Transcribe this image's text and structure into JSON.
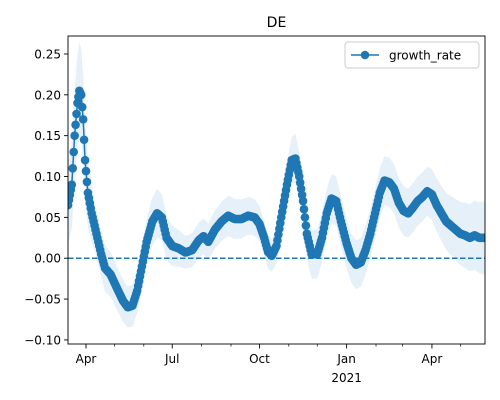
{
  "chart_data": {
    "type": "line",
    "title": "DE",
    "xlabel": "",
    "ylabel": "",
    "x_start": "2020-03-13",
    "x_end": "2021-05-27",
    "xlim": [
      "2020-03-13",
      "2021-05-27"
    ],
    "ylim": [
      -0.105,
      0.272
    ],
    "y_ticks": [
      -0.1,
      -0.05,
      0.0,
      0.05,
      0.1,
      0.15,
      0.2,
      0.25
    ],
    "y_tick_labels": [
      "−0.10",
      "−0.05",
      "0.00",
      "0.05",
      "0.10",
      "0.15",
      "0.20",
      "0.25"
    ],
    "x_ticks": [
      {
        "date": "2020-04-01",
        "label": "Apr",
        "sub": ""
      },
      {
        "date": "2020-07-01",
        "label": "Jul",
        "sub": ""
      },
      {
        "date": "2020-10-01",
        "label": "Oct",
        "sub": ""
      },
      {
        "date": "2021-01-01",
        "label": "Jan",
        "sub": "2021"
      },
      {
        "date": "2021-04-01",
        "label": "Apr",
        "sub": ""
      }
    ],
    "minor_x_ticks": [
      "2020-05-01",
      "2020-06-01",
      "2020-08-01",
      "2020-09-01",
      "2020-11-01",
      "2020-12-01",
      "2021-02-01",
      "2021-03-01",
      "2021-05-01"
    ],
    "reference_line": {
      "y": 0,
      "style": "dashed"
    },
    "legend": {
      "position": "top-right",
      "entries": [
        "growth_rate"
      ]
    },
    "grid": false,
    "color": "#1f77b4",
    "band_color": "#e6f0f9",
    "series": [
      {
        "name": "growth_rate",
        "key_points": [
          [
            "2020-03-13",
            0.065
          ],
          [
            "2020-03-17",
            0.09
          ],
          [
            "2020-03-20",
            0.15
          ],
          [
            "2020-03-23",
            0.19
          ],
          [
            "2020-03-25",
            0.205
          ],
          [
            "2020-03-27",
            0.2
          ],
          [
            "2020-03-29",
            0.17
          ],
          [
            "2020-03-31",
            0.12
          ],
          [
            "2020-04-03",
            0.08
          ],
          [
            "2020-04-07",
            0.055
          ],
          [
            "2020-04-12",
            0.03
          ],
          [
            "2020-04-17",
            0.005
          ],
          [
            "2020-04-21",
            -0.012
          ],
          [
            "2020-04-27",
            -0.02
          ],
          [
            "2020-05-03",
            -0.035
          ],
          [
            "2020-05-10",
            -0.052
          ],
          [
            "2020-05-15",
            -0.06
          ],
          [
            "2020-05-20",
            -0.058
          ],
          [
            "2020-05-25",
            -0.04
          ],
          [
            "2020-05-30",
            -0.01
          ],
          [
            "2020-06-04",
            0.02
          ],
          [
            "2020-06-10",
            0.045
          ],
          [
            "2020-06-15",
            0.055
          ],
          [
            "2020-06-20",
            0.05
          ],
          [
            "2020-06-25",
            0.025
          ],
          [
            "2020-07-01",
            0.015
          ],
          [
            "2020-07-08",
            0.012
          ],
          [
            "2020-07-15",
            0.007
          ],
          [
            "2020-07-22",
            0.01
          ],
          [
            "2020-07-29",
            0.022
          ],
          [
            "2020-08-03",
            0.027
          ],
          [
            "2020-08-08",
            0.02
          ],
          [
            "2020-08-15",
            0.035
          ],
          [
            "2020-08-22",
            0.045
          ],
          [
            "2020-08-29",
            0.052
          ],
          [
            "2020-09-05",
            0.048
          ],
          [
            "2020-09-12",
            0.048
          ],
          [
            "2020-09-19",
            0.052
          ],
          [
            "2020-09-26",
            0.05
          ],
          [
            "2020-10-01",
            0.042
          ],
          [
            "2020-10-06",
            0.025
          ],
          [
            "2020-10-10",
            0.008
          ],
          [
            "2020-10-14",
            0.003
          ],
          [
            "2020-10-19",
            0.015
          ],
          [
            "2020-10-24",
            0.05
          ],
          [
            "2020-10-30",
            0.09
          ],
          [
            "2020-11-04",
            0.12
          ],
          [
            "2020-11-08",
            0.122
          ],
          [
            "2020-11-12",
            0.1
          ],
          [
            "2020-11-16",
            0.07
          ],
          [
            "2020-11-20",
            0.03
          ],
          [
            "2020-11-25",
            0.005
          ],
          [
            "2020-12-01",
            0.005
          ],
          [
            "2020-12-06",
            0.025
          ],
          [
            "2020-12-11",
            0.055
          ],
          [
            "2020-12-16",
            0.073
          ],
          [
            "2020-12-21",
            0.07
          ],
          [
            "2020-12-26",
            0.045
          ],
          [
            "2021-01-01",
            0.018
          ],
          [
            "2021-01-06",
            0.0
          ],
          [
            "2021-01-11",
            -0.008
          ],
          [
            "2021-01-16",
            -0.005
          ],
          [
            "2021-01-21",
            0.01
          ],
          [
            "2021-01-26",
            0.03
          ],
          [
            "2021-01-31",
            0.055
          ],
          [
            "2021-02-05",
            0.08
          ],
          [
            "2021-02-10",
            0.095
          ],
          [
            "2021-02-15",
            0.093
          ],
          [
            "2021-02-20",
            0.085
          ],
          [
            "2021-02-25",
            0.068
          ],
          [
            "2021-03-02",
            0.058
          ],
          [
            "2021-03-07",
            0.055
          ],
          [
            "2021-03-12",
            0.062
          ],
          [
            "2021-03-17",
            0.07
          ],
          [
            "2021-03-22",
            0.075
          ],
          [
            "2021-03-27",
            0.082
          ],
          [
            "2021-04-01",
            0.078
          ],
          [
            "2021-04-06",
            0.065
          ],
          [
            "2021-04-11",
            0.055
          ],
          [
            "2021-04-16",
            0.045
          ],
          [
            "2021-04-21",
            0.04
          ],
          [
            "2021-04-26",
            0.035
          ],
          [
            "2021-05-01",
            0.03
          ],
          [
            "2021-05-06",
            0.028
          ],
          [
            "2021-05-11",
            0.025
          ],
          [
            "2021-05-16",
            0.028
          ],
          [
            "2021-05-21",
            0.025
          ],
          [
            "2021-05-27",
            0.025
          ]
        ],
        "band_halfwidth": [
          [
            "2020-03-13",
            0.05
          ],
          [
            "2020-03-25",
            0.06
          ],
          [
            "2020-04-10",
            0.03
          ],
          [
            "2020-05-15",
            0.025
          ],
          [
            "2020-06-15",
            0.03
          ],
          [
            "2020-07-15",
            0.02
          ],
          [
            "2020-09-01",
            0.025
          ],
          [
            "2020-10-15",
            0.02
          ],
          [
            "2020-11-08",
            0.03
          ],
          [
            "2020-12-16",
            0.03
          ],
          [
            "2021-01-11",
            0.03
          ],
          [
            "2021-02-15",
            0.03
          ],
          [
            "2021-03-27",
            0.03
          ],
          [
            "2021-05-27",
            0.045
          ]
        ]
      }
    ]
  }
}
